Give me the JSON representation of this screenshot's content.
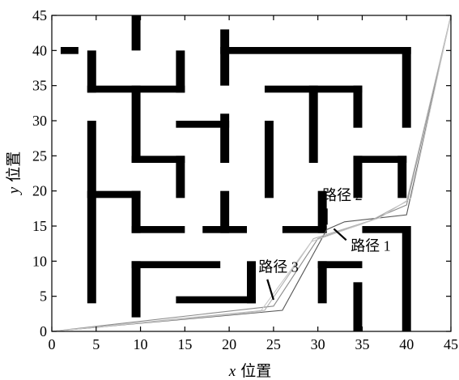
{
  "chart_data": {
    "type": "line",
    "xlabel_var": "x",
    "xlabel": "位置",
    "ylabel_var": "y",
    "ylabel": "位置",
    "xlim": [
      0,
      45
    ],
    "ylim": [
      0,
      45
    ],
    "xticks": [
      0,
      5,
      10,
      15,
      20,
      25,
      30,
      35,
      40,
      45
    ],
    "yticks": [
      0,
      5,
      10,
      15,
      20,
      25,
      30,
      35,
      40,
      45
    ],
    "grid": false,
    "obstacles": [
      [
        1,
        39.5,
        3,
        40.5
      ],
      [
        4,
        34,
        5,
        40
      ],
      [
        4,
        34,
        15,
        35
      ],
      [
        14,
        34,
        15,
        40
      ],
      [
        9,
        40,
        10,
        45
      ],
      [
        9,
        24,
        10,
        35
      ],
      [
        9,
        24,
        15,
        25
      ],
      [
        14,
        19,
        15,
        25
      ],
      [
        19,
        35,
        20,
        43
      ],
      [
        19,
        39.5,
        40.5,
        40.5
      ],
      [
        39.5,
        29,
        40.5,
        40.5
      ],
      [
        24,
        34,
        35,
        35
      ],
      [
        34,
        29,
        35,
        35
      ],
      [
        29,
        24,
        30,
        35
      ],
      [
        24,
        19,
        25,
        30
      ],
      [
        14,
        29,
        20,
        30
      ],
      [
        19,
        24,
        20,
        31
      ],
      [
        4,
        4,
        5,
        30
      ],
      [
        4,
        19,
        10,
        20
      ],
      [
        9,
        14,
        10,
        20
      ],
      [
        9,
        14,
        15,
        15
      ],
      [
        19,
        14,
        20,
        20
      ],
      [
        17,
        14,
        22,
        15
      ],
      [
        26,
        14,
        31,
        15
      ],
      [
        30,
        14,
        31,
        20
      ],
      [
        34,
        19,
        35,
        25
      ],
      [
        34,
        24,
        40,
        25
      ],
      [
        39,
        19,
        40,
        25
      ],
      [
        35,
        14,
        40,
        15
      ],
      [
        39.5,
        0,
        40.5,
        15
      ],
      [
        9,
        2,
        10,
        10
      ],
      [
        9,
        9,
        19,
        10
      ],
      [
        14,
        4,
        23,
        5
      ],
      [
        22,
        4,
        23,
        10
      ],
      [
        30,
        4,
        31,
        10
      ],
      [
        30,
        9,
        35,
        10
      ],
      [
        34,
        0,
        35,
        7
      ]
    ],
    "series": [
      {
        "color": "#555555",
        "points": [
          [
            0,
            0
          ],
          [
            26,
            3
          ],
          [
            31,
            14.5
          ],
          [
            33,
            15.6
          ],
          [
            40,
            16.6
          ],
          [
            45,
            45
          ]
        ]
      },
      {
        "color": "#8a8a8a",
        "points": [
          [
            0,
            0
          ],
          [
            25,
            3.6
          ],
          [
            30,
            13.2
          ],
          [
            35,
            15.3
          ],
          [
            40,
            18
          ],
          [
            45,
            45
          ]
        ]
      },
      {
        "color": "#b0b0b0",
        "points": [
          [
            0,
            0
          ],
          [
            24,
            3
          ],
          [
            29.5,
            13.2
          ],
          [
            36,
            15.8
          ],
          [
            40,
            18.5
          ],
          [
            45,
            45
          ]
        ]
      },
      {
        "color": "#c8c8c8",
        "points": [
          [
            0,
            0
          ],
          [
            23.5,
            2.8
          ],
          [
            29.3,
            12.8
          ],
          [
            37,
            16.2
          ],
          [
            40.5,
            19
          ],
          [
            45,
            45
          ]
        ]
      }
    ],
    "annotations": [
      {
        "text": "路径 1",
        "x": 33.7,
        "y": 11.5,
        "line": [
          [
            33.2,
            13
          ],
          [
            31.8,
            14.6
          ]
        ]
      },
      {
        "text": "路径 2",
        "x": 30.5,
        "y": 18.7,
        "line": [
          [
            31,
            17.5
          ],
          [
            31,
            15.2
          ]
        ]
      },
      {
        "text": "路径 3",
        "x": 23.3,
        "y": 8.5,
        "line": [
          [
            24.3,
            7.4
          ],
          [
            25,
            4.5
          ]
        ]
      }
    ]
  }
}
